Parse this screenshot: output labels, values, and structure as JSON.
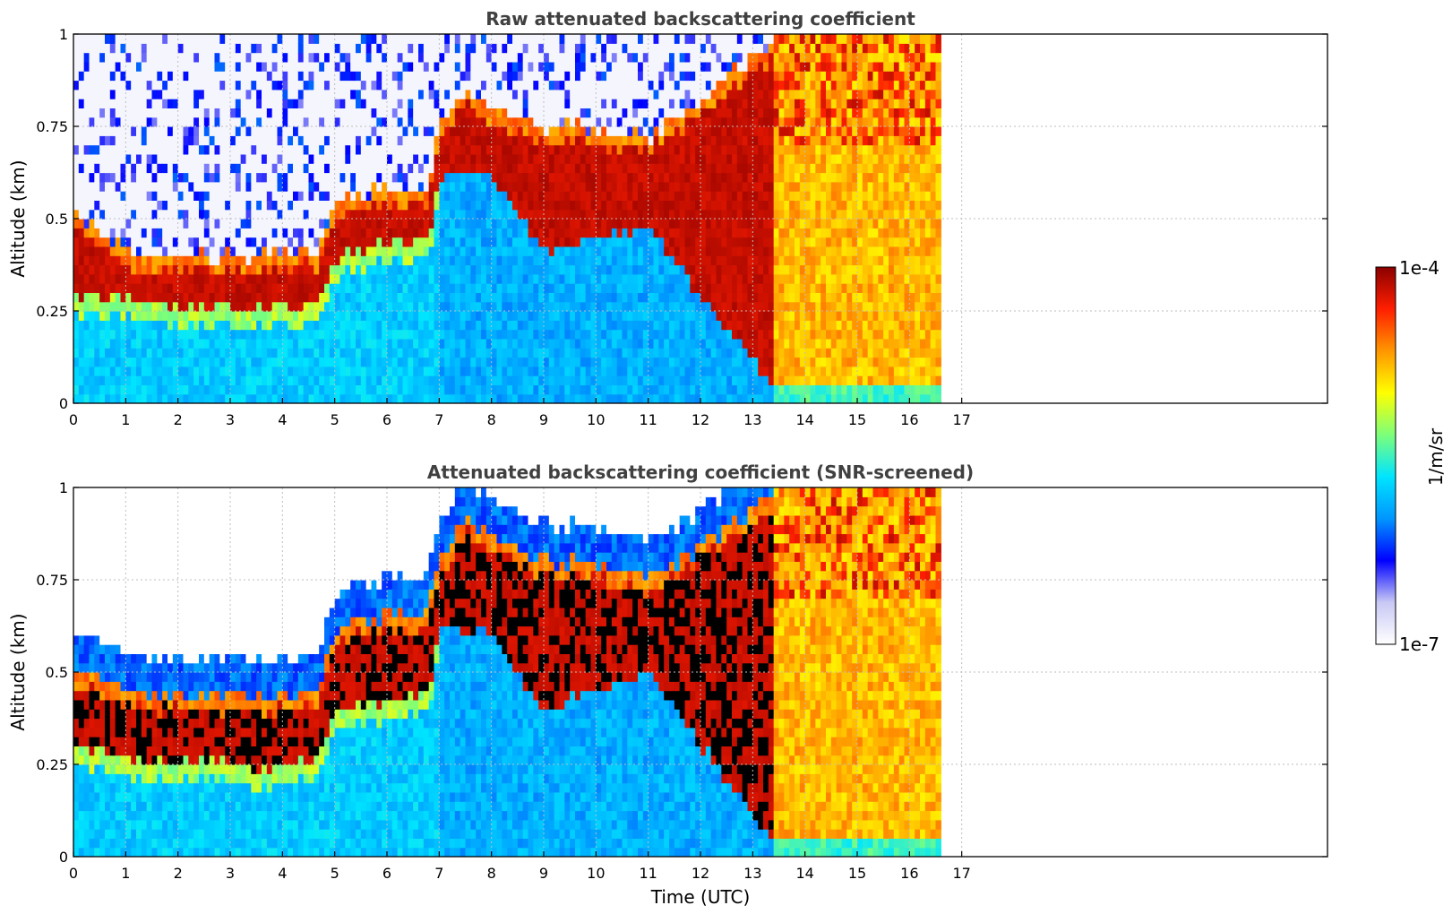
{
  "figure": {
    "xlabel": "Time (UTC)",
    "colorbar": {
      "label": "1/m/sr",
      "max_label": "1e-4",
      "min_label": "1e-7",
      "scale": "log",
      "colormap": [
        "#ffffff",
        "#c8c8f5",
        "#0000ff",
        "#0096ff",
        "#00e5ff",
        "#7dff7a",
        "#ffff00",
        "#ff9600",
        "#ff1e00",
        "#8b0000"
      ]
    }
  },
  "chart_data": [
    {
      "type": "heatmap",
      "title": "Raw attenuated backscattering coefficient",
      "xlabel": "",
      "ylabel": "Altitude (km)",
      "xlim": [
        0,
        24
      ],
      "ylim": [
        0,
        1
      ],
      "x_ticks": [
        0,
        1,
        2,
        3,
        4,
        5,
        6,
        7,
        8,
        9,
        10,
        11,
        12,
        13,
        14,
        15,
        16,
        17
      ],
      "y_ticks": [
        "0",
        "0.25",
        "0.5",
        "0.75",
        "1"
      ],
      "grid": true,
      "data_end_time": 16.6,
      "layer_top_km": [
        [
          0,
          0.52
        ],
        [
          1,
          0.41
        ],
        [
          2,
          0.41
        ],
        [
          3,
          0.4
        ],
        [
          4,
          0.4
        ],
        [
          4.7,
          0.42
        ],
        [
          5,
          0.55
        ],
        [
          6,
          0.58
        ],
        [
          6.8,
          0.58
        ],
        [
          7,
          0.75
        ],
        [
          7.5,
          0.85
        ],
        [
          8,
          0.8
        ],
        [
          9,
          0.75
        ],
        [
          10,
          0.75
        ],
        [
          11,
          0.72
        ],
        [
          13.4,
          0.98
        ],
        [
          16.6,
          0.98
        ]
      ],
      "layer_base_km": [
        [
          0,
          0.3
        ],
        [
          1,
          0.28
        ],
        [
          2,
          0.27
        ],
        [
          3,
          0.27
        ],
        [
          3.6,
          0.25
        ],
        [
          4,
          0.26
        ],
        [
          4.7,
          0.28
        ],
        [
          5,
          0.4
        ],
        [
          6,
          0.43
        ],
        [
          6.8,
          0.46
        ],
        [
          7,
          0.62
        ],
        [
          8,
          0.62
        ],
        [
          9,
          0.4
        ],
        [
          10,
          0.45
        ],
        [
          11,
          0.48
        ],
        [
          13.4,
          0.04
        ],
        [
          16.6,
          0.04
        ]
      ]
    },
    {
      "type": "heatmap",
      "title": "Attenuated backscattering coefficient (SNR-screened)",
      "xlabel": "Time (UTC)",
      "ylabel": "Altitude (km)",
      "xlim": [
        0,
        24
      ],
      "ylim": [
        0,
        1
      ],
      "x_ticks": [
        0,
        1,
        2,
        3,
        4,
        5,
        6,
        7,
        8,
        9,
        10,
        11,
        12,
        13,
        14,
        15,
        16,
        17
      ],
      "y_ticks": [
        "0",
        "0.25",
        "0.5",
        "0.75",
        "1"
      ],
      "grid": true,
      "data_end_time": 16.6,
      "layer_top_km": [
        [
          0,
          0.52
        ],
        [
          1,
          0.44
        ],
        [
          2,
          0.44
        ],
        [
          3,
          0.44
        ],
        [
          4,
          0.44
        ],
        [
          4.7,
          0.46
        ],
        [
          5,
          0.62
        ],
        [
          6,
          0.66
        ],
        [
          6.8,
          0.66
        ],
        [
          7,
          0.8
        ],
        [
          7.5,
          0.92
        ],
        [
          8,
          0.88
        ],
        [
          9,
          0.8
        ],
        [
          10,
          0.8
        ],
        [
          11,
          0.75
        ],
        [
          13.4,
          0.98
        ],
        [
          16.6,
          0.98
        ]
      ],
      "layer_base_km": [
        [
          0,
          0.3
        ],
        [
          1,
          0.26
        ],
        [
          2,
          0.26
        ],
        [
          3,
          0.26
        ],
        [
          3.6,
          0.24
        ],
        [
          4,
          0.25
        ],
        [
          4.7,
          0.27
        ],
        [
          5,
          0.4
        ],
        [
          6,
          0.42
        ],
        [
          6.8,
          0.45
        ],
        [
          7,
          0.62
        ],
        [
          8,
          0.6
        ],
        [
          9,
          0.4
        ],
        [
          10,
          0.45
        ],
        [
          11,
          0.5
        ],
        [
          13.4,
          0.04
        ],
        [
          16.6,
          0.04
        ]
      ]
    }
  ]
}
